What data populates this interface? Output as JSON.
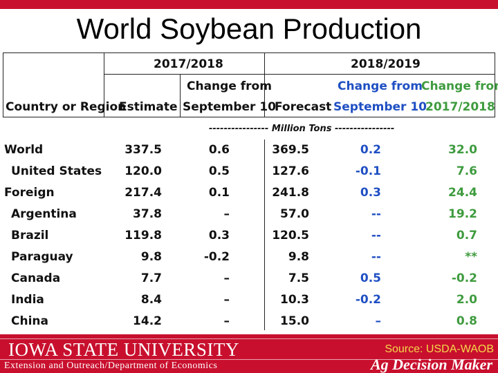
{
  "title": "World Soybean Production",
  "header": {
    "group_2017": "2017/2018",
    "group_2018": "2018/2019",
    "country": "Country or Region",
    "estimate": "Estimate",
    "change_sep_line1": "Change from",
    "change_sep_line2": "September 10",
    "forecast": "Forecast",
    "change_sep2_line1": "Change from",
    "change_sep2_line2": "September 10",
    "change_prev_line1": "Change from",
    "change_prev_line2": "2017/2018"
  },
  "unit": "---------------- Million Tons ----------------",
  "rows": [
    {
      "name": "World",
      "estimate": "337.5",
      "chg_sep": "0.6",
      "forecast": "369.5",
      "chg_sep2": "0.2",
      "chg_prev": "32.0"
    },
    {
      "name": "United States",
      "estimate": "120.0",
      "chg_sep": "0.5",
      "forecast": "127.6",
      "chg_sep2": "-0.1",
      "chg_prev": "7.6"
    },
    {
      "name": "Foreign",
      "estimate": "217.4",
      "chg_sep": "0.1",
      "forecast": "241.8",
      "chg_sep2": "0.3",
      "chg_prev": "24.4"
    },
    {
      "name": "Argentina",
      "estimate": "37.8",
      "chg_sep": "–",
      "forecast": "57.0",
      "chg_sep2": "--",
      "chg_prev": "19.2"
    },
    {
      "name": "Brazil",
      "estimate": "119.8",
      "chg_sep": "0.3",
      "forecast": "120.5",
      "chg_sep2": "--",
      "chg_prev": "0.7"
    },
    {
      "name": "Paraguay",
      "estimate": "9.8",
      "chg_sep": "-0.2",
      "forecast": "9.8",
      "chg_sep2": "--",
      "chg_prev": "**"
    },
    {
      "name": "Canada",
      "estimate": "7.7",
      "chg_sep": "–",
      "forecast": "7.5",
      "chg_sep2": "0.5",
      "chg_prev": "-0.2"
    },
    {
      "name": "India",
      "estimate": "8.4",
      "chg_sep": "–",
      "forecast": "10.3",
      "chg_sep2": "-0.2",
      "chg_prev": "2.0"
    },
    {
      "name": "China",
      "estimate": "14.2",
      "chg_sep": "–",
      "forecast": "15.0",
      "chg_sep2": "–",
      "chg_prev": "0.8"
    }
  ],
  "footer": {
    "university": "IOWA STATE UNIVERSITY",
    "department": "Extension and Outreach/Department of Economics",
    "source": "Source: USDA-WAOB",
    "brand": "Ag Decision Maker"
  },
  "colors": {
    "accent_red": "#c8102e",
    "blue_text": "#1f4fc3",
    "green_text": "#3e9b3e",
    "source_yellow": "#f5d84a"
  }
}
